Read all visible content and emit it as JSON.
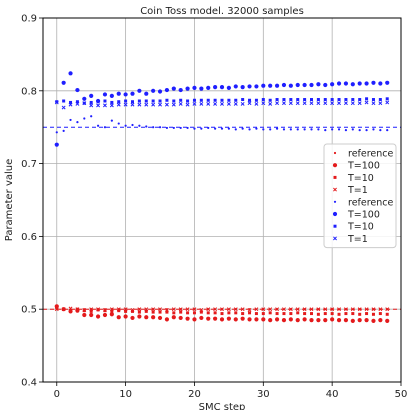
{
  "chart_data": {
    "type": "scatter",
    "title": "Coin Toss model. 32000 samples",
    "xlabel": "SMC step",
    "ylabel": "Parameter value",
    "xlim": [
      -2,
      50
    ],
    "ylim": [
      0.4,
      0.9
    ],
    "xticks": [
      0,
      10,
      20,
      30,
      40,
      50
    ],
    "yticks": [
      0.4,
      0.5,
      0.6,
      0.7,
      0.8,
      0.9
    ],
    "grid": true,
    "legend_position": "right",
    "reference_lines": [
      {
        "value": 0.5,
        "color": "#e41a1c"
      },
      {
        "value": 0.75,
        "color": "#1f1fff"
      }
    ],
    "series": [
      {
        "name": "reference",
        "color": "#e41a1c",
        "marker": "dot",
        "x": [
          0,
          1,
          2,
          3,
          4,
          5,
          6,
          7,
          8,
          9,
          10,
          12,
          14,
          16,
          18,
          20,
          22,
          24,
          26,
          28,
          30,
          32,
          34,
          36,
          38,
          40,
          42,
          44,
          46,
          48
        ],
        "y": [
          0.503,
          0.501,
          0.5,
          0.5,
          0.5,
          0.5,
          0.5,
          0.5,
          0.5,
          0.5,
          0.5,
          0.5,
          0.5,
          0.5,
          0.5,
          0.5,
          0.5,
          0.5,
          0.5,
          0.5,
          0.5,
          0.5,
          0.5,
          0.5,
          0.5,
          0.5,
          0.5,
          0.5,
          0.5,
          0.5
        ]
      },
      {
        "name": "T=100",
        "color": "#e41a1c",
        "marker": "circle",
        "x": [
          0,
          1,
          2,
          3,
          4,
          5,
          6,
          7,
          8,
          9,
          10,
          11,
          12,
          13,
          14,
          15,
          16,
          17,
          18,
          19,
          20,
          21,
          22,
          23,
          24,
          25,
          26,
          27,
          28,
          29,
          30,
          31,
          32,
          33,
          34,
          35,
          36,
          37,
          38,
          39,
          40,
          41,
          42,
          43,
          44,
          45,
          46,
          47,
          48
        ],
        "y": [
          0.504,
          0.5,
          0.497,
          0.498,
          0.492,
          0.492,
          0.49,
          0.492,
          0.493,
          0.489,
          0.49,
          0.488,
          0.49,
          0.489,
          0.489,
          0.488,
          0.486,
          0.489,
          0.488,
          0.487,
          0.486,
          0.488,
          0.487,
          0.487,
          0.486,
          0.487,
          0.486,
          0.487,
          0.486,
          0.486,
          0.486,
          0.485,
          0.486,
          0.485,
          0.486,
          0.485,
          0.486,
          0.485,
          0.485,
          0.485,
          0.486,
          0.485,
          0.485,
          0.484,
          0.485,
          0.485,
          0.484,
          0.485,
          0.484
        ]
      },
      {
        "name": "T=10",
        "color": "#e41a1c",
        "marker": "square",
        "x": [
          0,
          1,
          2,
          3,
          4,
          5,
          6,
          7,
          8,
          9,
          10,
          11,
          12,
          13,
          14,
          15,
          16,
          17,
          18,
          19,
          20,
          21,
          22,
          23,
          24,
          25,
          26,
          27,
          28,
          29,
          30,
          31,
          32,
          33,
          34,
          35,
          36,
          37,
          38,
          39,
          40,
          41,
          42,
          43,
          44,
          45,
          46,
          47,
          48
        ],
        "y": [
          0.502,
          0.5,
          0.498,
          0.5,
          0.498,
          0.497,
          0.499,
          0.498,
          0.497,
          0.498,
          0.497,
          0.497,
          0.496,
          0.497,
          0.496,
          0.496,
          0.496,
          0.495,
          0.496,
          0.495,
          0.495,
          0.496,
          0.495,
          0.495,
          0.494,
          0.495,
          0.495,
          0.494,
          0.495,
          0.494,
          0.494,
          0.495,
          0.494,
          0.494,
          0.494,
          0.495,
          0.494,
          0.494,
          0.493,
          0.494,
          0.494,
          0.493,
          0.494,
          0.494,
          0.493,
          0.494,
          0.493,
          0.494,
          0.493
        ]
      },
      {
        "name": "T=1",
        "color": "#e41a1c",
        "marker": "x",
        "x": [
          0,
          1,
          2,
          3,
          4,
          5,
          6,
          7,
          8,
          9,
          10,
          11,
          12,
          13,
          14,
          15,
          16,
          17,
          18,
          19,
          20,
          21,
          22,
          23,
          24,
          25,
          26,
          27,
          28,
          29,
          30,
          31,
          32,
          33,
          34,
          35,
          36,
          37,
          38,
          39,
          40,
          41,
          42,
          43,
          44,
          45,
          46,
          47,
          48
        ],
        "y": [
          0.5,
          0.5,
          0.501,
          0.5,
          0.499,
          0.5,
          0.5,
          0.499,
          0.5,
          0.5,
          0.5,
          0.499,
          0.5,
          0.5,
          0.5,
          0.5,
          0.499,
          0.5,
          0.5,
          0.5,
          0.5,
          0.499,
          0.5,
          0.5,
          0.5,
          0.5,
          0.5,
          0.5,
          0.499,
          0.5,
          0.5,
          0.5,
          0.5,
          0.5,
          0.5,
          0.5,
          0.5,
          0.5,
          0.5,
          0.5,
          0.5,
          0.5,
          0.5,
          0.5,
          0.5,
          0.5,
          0.5,
          0.5,
          0.5
        ]
      },
      {
        "name": "reference",
        "color": "#1f1fff",
        "marker": "dot",
        "x": [
          0,
          1,
          2,
          3,
          4,
          5,
          6,
          7,
          8,
          9,
          10,
          11,
          12,
          13,
          14,
          15,
          16,
          17,
          18,
          19,
          20,
          21,
          22,
          23,
          24,
          25,
          26,
          27,
          28,
          29,
          30,
          31,
          32,
          33,
          34,
          35,
          36,
          37,
          38,
          39,
          40,
          41,
          42,
          43,
          44,
          45,
          46,
          47,
          48
        ],
        "y": [
          0.743,
          0.745,
          0.76,
          0.757,
          0.762,
          0.765,
          0.752,
          0.75,
          0.759,
          0.755,
          0.752,
          0.753,
          0.752,
          0.751,
          0.75,
          0.75,
          0.749,
          0.749,
          0.749,
          0.749,
          0.748,
          0.748,
          0.749,
          0.748,
          0.748,
          0.748,
          0.747,
          0.748,
          0.747,
          0.748,
          0.747,
          0.747,
          0.748,
          0.747,
          0.747,
          0.747,
          0.747,
          0.747,
          0.747,
          0.746,
          0.747,
          0.747,
          0.746,
          0.747,
          0.746,
          0.746,
          0.747,
          0.746,
          0.746
        ]
      },
      {
        "name": "T=100",
        "color": "#1f1fff",
        "marker": "circle",
        "x": [
          0,
          1,
          2,
          3,
          4,
          5,
          6,
          7,
          8,
          9,
          10,
          11,
          12,
          13,
          14,
          15,
          16,
          17,
          18,
          19,
          20,
          21,
          22,
          23,
          24,
          25,
          26,
          27,
          28,
          29,
          30,
          31,
          32,
          33,
          34,
          35,
          36,
          37,
          38,
          39,
          40,
          41,
          42,
          43,
          44,
          45,
          46,
          47,
          48
        ],
        "y": [
          0.726,
          0.811,
          0.824,
          0.801,
          0.789,
          0.793,
          0.786,
          0.795,
          0.793,
          0.796,
          0.795,
          0.796,
          0.8,
          0.796,
          0.8,
          0.799,
          0.801,
          0.803,
          0.801,
          0.803,
          0.804,
          0.803,
          0.804,
          0.805,
          0.805,
          0.804,
          0.806,
          0.805,
          0.806,
          0.806,
          0.807,
          0.807,
          0.807,
          0.808,
          0.807,
          0.808,
          0.808,
          0.808,
          0.809,
          0.808,
          0.809,
          0.81,
          0.81,
          0.809,
          0.81,
          0.81,
          0.811,
          0.81,
          0.811
        ]
      },
      {
        "name": "T=10",
        "color": "#1f1fff",
        "marker": "square",
        "x": [
          0,
          1,
          2,
          3,
          4,
          5,
          6,
          7,
          8,
          9,
          10,
          11,
          12,
          13,
          14,
          15,
          16,
          17,
          18,
          19,
          20,
          21,
          22,
          23,
          24,
          25,
          26,
          27,
          28,
          29,
          30,
          31,
          32,
          33,
          34,
          35,
          36,
          37,
          38,
          39,
          40,
          41,
          42,
          43,
          44,
          45,
          46,
          47,
          48
        ],
        "y": [
          0.785,
          0.786,
          0.784,
          0.785,
          0.783,
          0.784,
          0.785,
          0.786,
          0.784,
          0.785,
          0.786,
          0.785,
          0.786,
          0.786,
          0.786,
          0.786,
          0.787,
          0.786,
          0.787,
          0.786,
          0.787,
          0.787,
          0.787,
          0.787,
          0.787,
          0.787,
          0.787,
          0.788,
          0.787,
          0.787,
          0.788,
          0.787,
          0.788,
          0.788,
          0.788,
          0.788,
          0.788,
          0.788,
          0.788,
          0.788,
          0.788,
          0.788,
          0.788,
          0.788,
          0.788,
          0.789,
          0.788,
          0.788,
          0.789
        ]
      },
      {
        "name": "T=1",
        "color": "#1f1fff",
        "marker": "x",
        "x": [
          0,
          1,
          2,
          3,
          4,
          5,
          6,
          7,
          8,
          9,
          10,
          11,
          12,
          13,
          14,
          15,
          16,
          17,
          18,
          19,
          20,
          21,
          22,
          23,
          24,
          25,
          26,
          27,
          28,
          29,
          30,
          31,
          32,
          33,
          34,
          35,
          36,
          37,
          38,
          39,
          40,
          41,
          42,
          43,
          44,
          45,
          46,
          47,
          48
        ],
        "y": [
          0.784,
          0.777,
          0.781,
          0.782,
          0.783,
          0.78,
          0.78,
          0.78,
          0.78,
          0.781,
          0.781,
          0.781,
          0.781,
          0.781,
          0.781,
          0.781,
          0.781,
          0.781,
          0.782,
          0.781,
          0.782,
          0.782,
          0.782,
          0.782,
          0.782,
          0.782,
          0.782,
          0.782,
          0.783,
          0.782,
          0.783,
          0.782,
          0.783,
          0.783,
          0.783,
          0.783,
          0.783,
          0.783,
          0.783,
          0.783,
          0.783,
          0.783,
          0.783,
          0.783,
          0.783,
          0.784,
          0.783,
          0.783,
          0.784
        ]
      }
    ]
  }
}
